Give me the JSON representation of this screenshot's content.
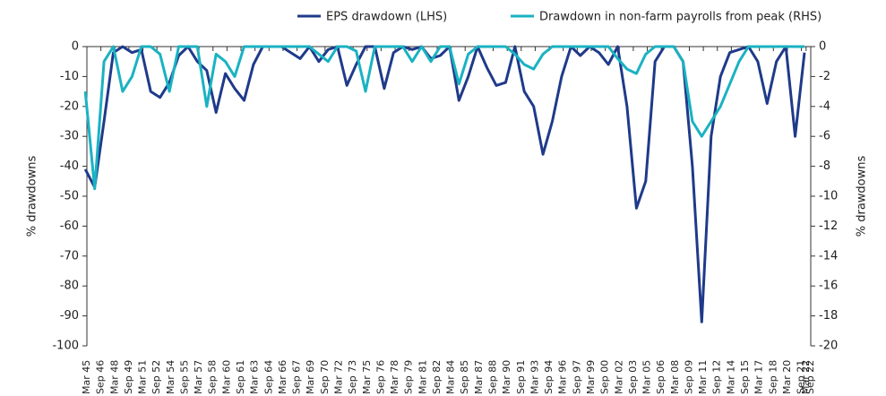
{
  "chart_data": {
    "type": "line",
    "x": [
      1945,
      1946,
      1947,
      1948,
      1949,
      1950,
      1951,
      1952,
      1953,
      1954,
      1955,
      1956,
      1957,
      1958,
      1959,
      1960,
      1961,
      1962,
      1963,
      1964,
      1965,
      1966,
      1967,
      1968,
      1969,
      1970,
      1971,
      1972,
      1973,
      1974,
      1975,
      1976,
      1977,
      1978,
      1979,
      1980,
      1981,
      1982,
      1983,
      1984,
      1985,
      1986,
      1987,
      1988,
      1989,
      1990,
      1991,
      1992,
      1993,
      1994,
      1995,
      1996,
      1997,
      1998,
      1999,
      2000,
      2001,
      2002,
      2003,
      2004,
      2005,
      2006,
      2007,
      2008,
      2009,
      2010,
      2011,
      2012,
      2013,
      2014,
      2015,
      2016,
      2017,
      2018,
      2019,
      2020,
      2021,
      2022
    ],
    "series": [
      {
        "name": "EPS drawdown (LHS)",
        "color": "#1f3a8a",
        "axis": "y",
        "values": [
          -41,
          -47,
          -25,
          -2,
          0,
          -2,
          -1,
          -15,
          -17,
          -12,
          -3,
          0,
          -5,
          -8,
          -22,
          -9,
          -14,
          -18,
          -6,
          0,
          0,
          0,
          -2,
          -4,
          0,
          -5,
          -1,
          0,
          -13,
          -6,
          0,
          0,
          -14,
          -2,
          0,
          -1,
          0,
          -4,
          -3,
          0,
          -18,
          -10,
          0,
          -7,
          -13,
          -12,
          0,
          -15,
          -20,
          -36,
          -25,
          -10,
          0,
          -3,
          0,
          -2,
          -6,
          0,
          -20,
          -54,
          -45,
          -5,
          0,
          0,
          -5,
          -40,
          -92,
          -30,
          -10,
          -2,
          -1,
          0,
          -5,
          -19,
          -5,
          0,
          -30,
          -2
        ]
      },
      {
        "name": "Drawdown in non-farm payrolls from peak (RHS)",
        "color": "#1ab2c2",
        "axis": "y2",
        "values": [
          -3,
          -9.5,
          -1,
          0,
          -3,
          -2,
          0,
          0,
          -0.5,
          -3,
          0,
          0,
          0,
          -4,
          -0.5,
          -1,
          -2,
          0,
          0,
          0,
          0,
          0,
          0,
          0,
          0,
          -0.5,
          -1,
          0,
          0,
          -0.3,
          -3,
          0,
          0,
          0,
          0,
          -1,
          0,
          -1,
          0,
          0,
          -2.5,
          -0.5,
          0,
          0,
          0,
          0,
          -0.5,
          -1.2,
          -1.5,
          -0.5,
          0,
          0,
          0,
          0,
          0,
          0,
          0,
          -0.8,
          -1.5,
          -1.8,
          -0.5,
          0,
          0,
          0,
          -1,
          -5,
          -6,
          -5,
          -4,
          -2.5,
          -1,
          0,
          0,
          0,
          0,
          0,
          0,
          0
        ]
      }
    ],
    "ylabel": "% drawdowns",
    "y2label": "% drawdowns",
    "ylim": [
      -100,
      0
    ],
    "yticks": [
      0,
      -10,
      -20,
      -30,
      -40,
      -50,
      -60,
      -70,
      -80,
      -90,
      -100
    ],
    "y2lim": [
      -20,
      0
    ],
    "y2ticks": [
      0,
      -2,
      -4,
      -6,
      -8,
      -10,
      -12,
      -14,
      -16,
      -18,
      -20
    ],
    "xlim": [
      1945.17,
      2022.67
    ],
    "xticks": [
      {
        "value": 1945.17,
        "label": "Mar 45"
      },
      {
        "value": 1946.67,
        "label": "Sep 46"
      },
      {
        "value": 1948.17,
        "label": "Mar 48"
      },
      {
        "value": 1949.67,
        "label": "Sep 49"
      },
      {
        "value": 1951.17,
        "label": "Mar 51"
      },
      {
        "value": 1952.67,
        "label": "Sep 52"
      },
      {
        "value": 1954.17,
        "label": "Mar 54"
      },
      {
        "value": 1955.67,
        "label": "Sep 55"
      },
      {
        "value": 1957.17,
        "label": "Mar 57"
      },
      {
        "value": 1958.67,
        "label": "Sep 58"
      },
      {
        "value": 1960.17,
        "label": "Mar 60"
      },
      {
        "value": 1961.67,
        "label": "Sep 61"
      },
      {
        "value": 1963.17,
        "label": "Mar 63"
      },
      {
        "value": 1964.67,
        "label": "Sep 64"
      },
      {
        "value": 1966.17,
        "label": "Mar 66"
      },
      {
        "value": 1967.67,
        "label": "Sep 67"
      },
      {
        "value": 1969.17,
        "label": "Mar 69"
      },
      {
        "value": 1970.67,
        "label": "Sep 70"
      },
      {
        "value": 1972.17,
        "label": "Mar 72"
      },
      {
        "value": 1973.67,
        "label": "Sep 73"
      },
      {
        "value": 1975.17,
        "label": "Mar 75"
      },
      {
        "value": 1976.67,
        "label": "Sep 76"
      },
      {
        "value": 1978.17,
        "label": "Mar 78"
      },
      {
        "value": 1979.67,
        "label": "Sep 79"
      },
      {
        "value": 1981.17,
        "label": "Mar 81"
      },
      {
        "value": 1982.67,
        "label": "Sep 82"
      },
      {
        "value": 1984.17,
        "label": "Mar 84"
      },
      {
        "value": 1985.67,
        "label": "Sep 85"
      },
      {
        "value": 1987.17,
        "label": "Mar 87"
      },
      {
        "value": 1988.67,
        "label": "Sep 88"
      },
      {
        "value": 1990.17,
        "label": "Mar 90"
      },
      {
        "value": 1991.67,
        "label": "Sep 91"
      },
      {
        "value": 1993.17,
        "label": "Mar 93"
      },
      {
        "value": 1994.67,
        "label": "Sep 94"
      },
      {
        "value": 1996.17,
        "label": "Mar 96"
      },
      {
        "value": 1997.67,
        "label": "Sep 97"
      },
      {
        "value": 1999.17,
        "label": "Mar 99"
      },
      {
        "value": 2000.67,
        "label": "Sep 00"
      },
      {
        "value": 2002.17,
        "label": "Mar 02"
      },
      {
        "value": 2003.67,
        "label": "Sep 03"
      },
      {
        "value": 2005.17,
        "label": "Mar 05"
      },
      {
        "value": 2006.67,
        "label": "Sep 06"
      },
      {
        "value": 2008.17,
        "label": "Mar 08"
      },
      {
        "value": 2009.67,
        "label": "Sep 09"
      },
      {
        "value": 2011.17,
        "label": "Mar 11"
      },
      {
        "value": 2012.67,
        "label": "Sep 12"
      },
      {
        "value": 2014.17,
        "label": "Mar 14"
      },
      {
        "value": 2015.67,
        "label": "Sep 15"
      },
      {
        "value": 2017.17,
        "label": "Mar 17"
      },
      {
        "value": 2018.67,
        "label": "Sep 18"
      },
      {
        "value": 2020.17,
        "label": "Mar 20"
      },
      {
        "value": 2021.67,
        "label": "Sep 21"
      },
      {
        "value": 2022.17,
        "label": "Mar 22"
      },
      {
        "value": 2022.67,
        "label": "Sep 22"
      }
    ],
    "legend": "top-right"
  }
}
